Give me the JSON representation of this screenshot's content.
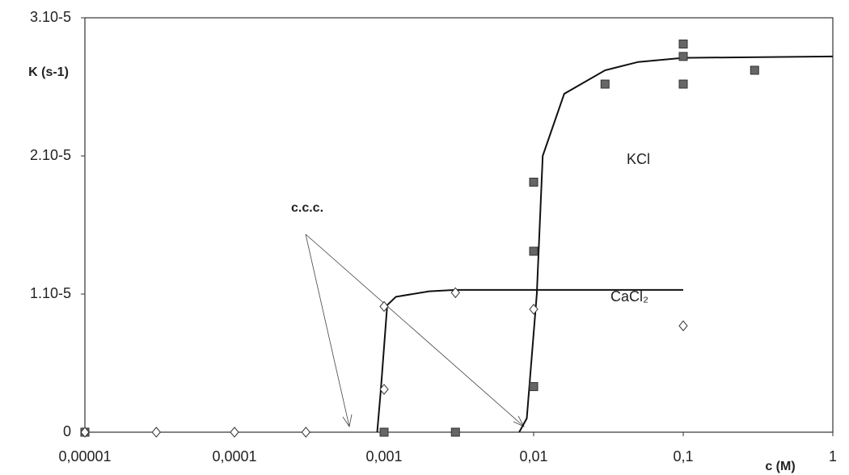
{
  "chart_data": {
    "type": "scatter",
    "xlabel": "c (M)",
    "ylabel": "K (s-1)",
    "annotation": "c.c.c.",
    "xscale": "log",
    "xlim": [
      1e-05,
      1
    ],
    "ylim": [
      0,
      3e-05
    ],
    "xticks": [
      {
        "value": 1e-05,
        "label": "0,00001"
      },
      {
        "value": 0.0001,
        "label": "0,0001"
      },
      {
        "value": 0.001,
        "label": "0,001"
      },
      {
        "value": 0.01,
        "label": "0,01"
      },
      {
        "value": 0.1,
        "label": "0,1"
      },
      1
    ],
    "yticks": [
      0,
      {
        "value": 1e-05,
        "label": "1.10-5"
      },
      {
        "value": 2e-05,
        "label": "2.10-5"
      },
      {
        "value": 3e-05,
        "label": "3.10-5"
      }
    ],
    "series": [
      {
        "name": "KCl",
        "color": "#666666",
        "marker": "square",
        "x": [
          1e-05,
          0.001,
          0.003,
          0.01,
          0.01,
          0.01,
          0.03,
          0.1,
          0.1,
          0.1,
          0.3
        ],
        "values": [
          0,
          0,
          0,
          3.3e-06,
          1.31e-05,
          1.81e-05,
          2.52e-05,
          2.81e-05,
          2.72e-05,
          2.52e-05,
          2.62e-05
        ],
        "fit": {
          "x": [
            0.008,
            0.009,
            0.0105,
            0.0115,
            0.016,
            0.03,
            0.05,
            0.1,
            1
          ],
          "values": [
            0,
            1e-06,
            1e-05,
            2e-05,
            2.45e-05,
            2.62e-05,
            2.68e-05,
            2.71e-05,
            2.72e-05
          ]
        }
      },
      {
        "name": "CaCl₂",
        "color": "#ffffff",
        "marker": "diamond",
        "x": [
          1e-05,
          3e-05,
          0.0001,
          0.0003,
          0.001,
          0.001,
          0.003,
          0.01,
          0.1
        ],
        "values": [
          0,
          0,
          0,
          0,
          9.1e-06,
          3.1e-06,
          1.01e-05,
          8.9e-06,
          7.7e-06
        ],
        "fit": {
          "x": [
            0.0009,
            0.00095,
            0.00105,
            0.0012,
            0.002,
            0.003,
            0.1
          ],
          "values": [
            0,
            3e-06,
            9.2e-06,
            9.8e-06,
            1.02e-05,
            1.03e-05,
            1.03e-05
          ]
        }
      }
    ]
  }
}
